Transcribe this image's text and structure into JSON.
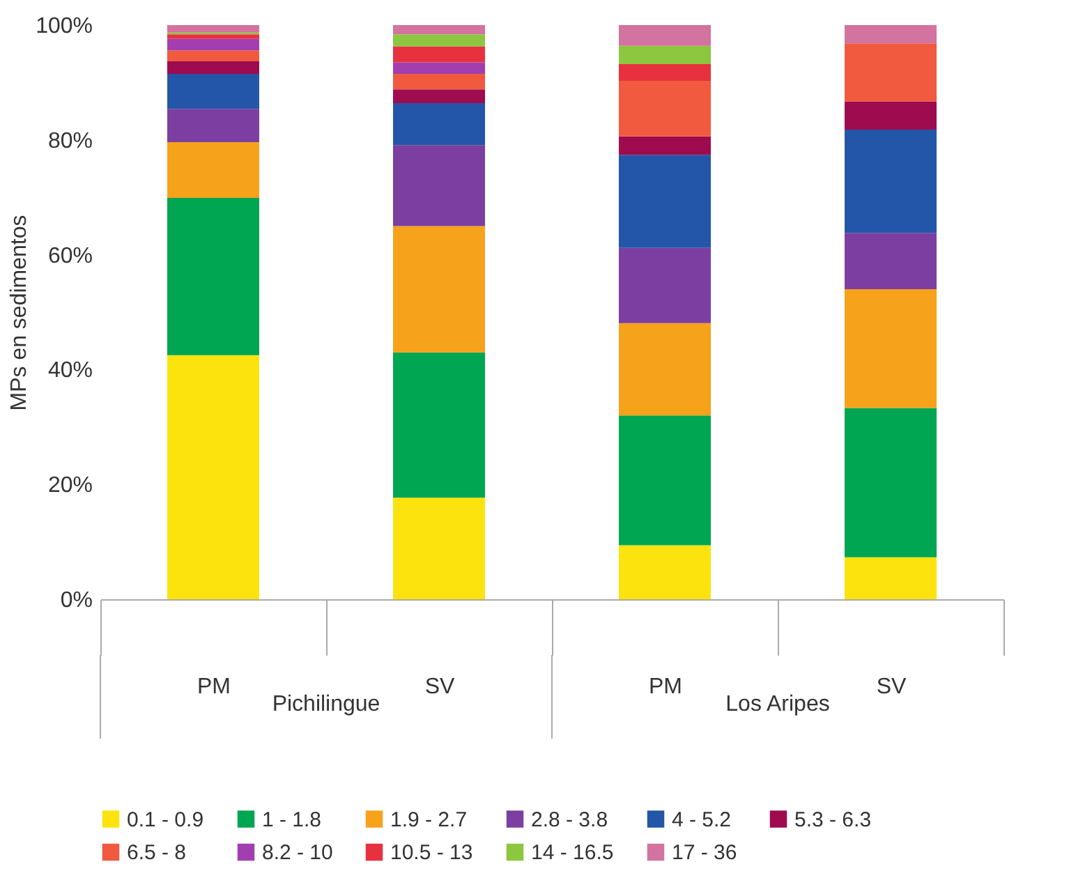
{
  "chart_data": {
    "type": "bar",
    "stacked": true,
    "ylabel": "MPs en sedimentos",
    "categories": [
      "PM",
      "SV",
      "PM",
      "SV"
    ],
    "annotations": [
      "Pichilingue",
      "Los Aripes"
    ],
    "ylim": [
      0,
      100
    ],
    "yticks": [
      {
        "value": 0,
        "label": "0%"
      },
      {
        "value": 20,
        "label": "20%"
      },
      {
        "value": 40,
        "label": "40%"
      },
      {
        "value": 60,
        "label": "60%"
      },
      {
        "value": 80,
        "label": "80%"
      },
      {
        "value": 100,
        "label": "100%"
      }
    ],
    "grid": false,
    "legend": "bottom",
    "series": [
      {
        "name": "0.1 - 0.9",
        "color": "#fde30e",
        "values": [
          42.5,
          17.7,
          9.4,
          7.3
        ]
      },
      {
        "name": "1 - 1.8",
        "color": "#00a651",
        "values": [
          27.4,
          25.3,
          22.6,
          26.0
        ]
      },
      {
        "name": "1.9 - 2.7",
        "color": "#f7a21b",
        "values": [
          9.7,
          22.0,
          16.1,
          20.7
        ]
      },
      {
        "name": "2.8 - 3.8",
        "color": "#7c3ea1",
        "values": [
          5.8,
          14.1,
          13.1,
          9.8
        ]
      },
      {
        "name": "4 - 5.2",
        "color": "#2356a8",
        "values": [
          6.1,
          7.3,
          16.2,
          18.0
        ]
      },
      {
        "name": "5.3 - 6.3",
        "color": "#9e0b4e",
        "values": [
          2.2,
          2.4,
          3.2,
          4.9
        ]
      },
      {
        "name": "6.5 - 8",
        "color": "#f15a3f",
        "values": [
          1.9,
          2.7,
          9.7,
          10.1
        ]
      },
      {
        "name": "8.2 - 10",
        "color": "#a23eb0",
        "values": [
          2.0,
          2.0,
          0,
          0
        ]
      },
      {
        "name": "10.5 - 13",
        "color": "#e8313f",
        "values": [
          0.8,
          2.8,
          2.9,
          0
        ]
      },
      {
        "name": "14 - 16.5",
        "color": "#8dc63f",
        "values": [
          0.3,
          2.1,
          3.2,
          0
        ]
      },
      {
        "name": "17 - 36",
        "color": "#d3739f",
        "values": [
          1.3,
          1.6,
          3.6,
          3.2
        ]
      }
    ]
  }
}
